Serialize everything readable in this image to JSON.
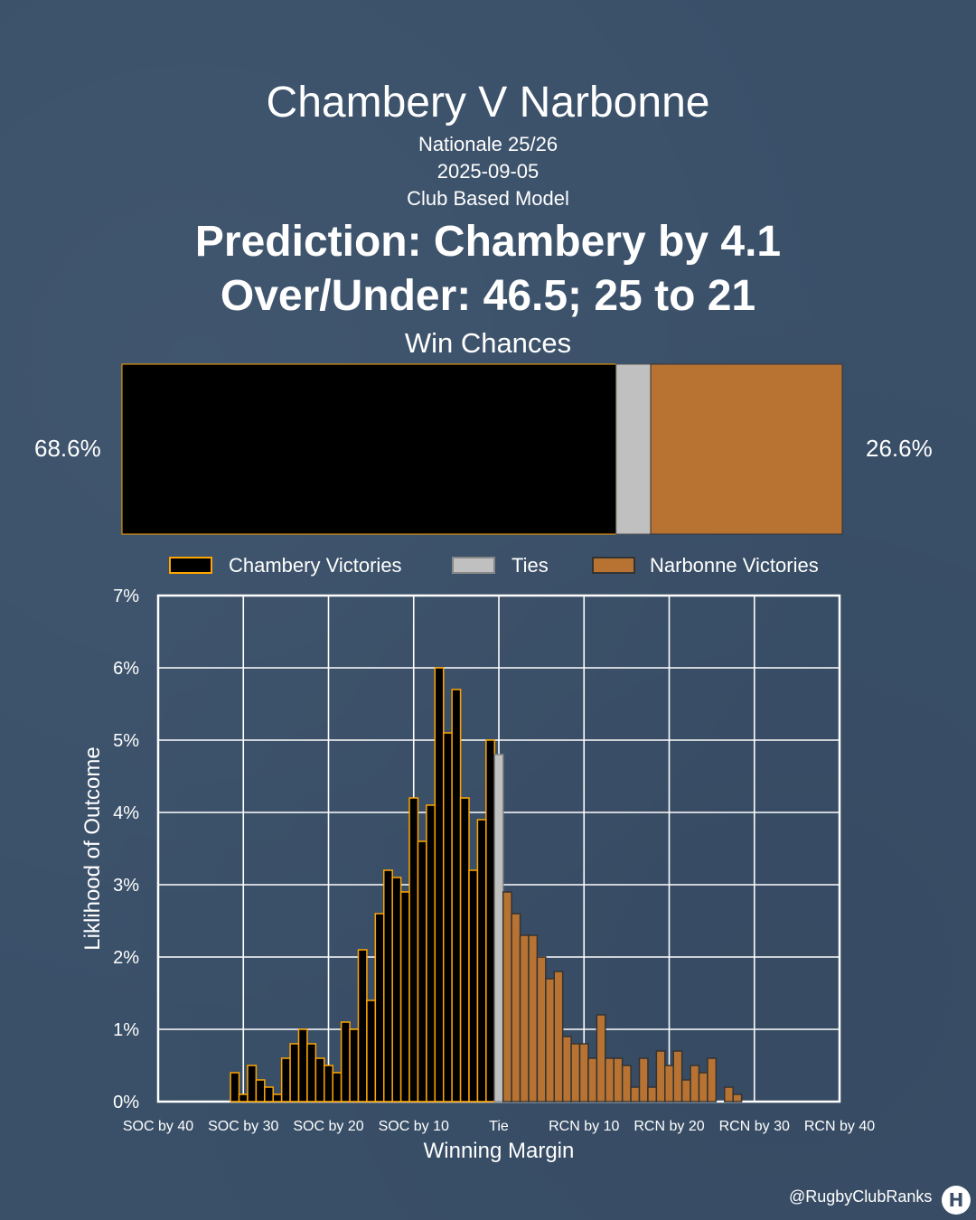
{
  "header": {
    "title": "Chambery V Narbonne",
    "competition": "Nationale 25/26",
    "date": "2025-09-05",
    "model": "Club Based Model",
    "prediction": "Prediction: Chambery by 4.1",
    "over_under": "Over/Under: 46.5; 25 to 21"
  },
  "win_chances": {
    "title": "Win Chances",
    "home_label": "68.6%",
    "away_label": "26.6%",
    "home_pct": 68.6,
    "tie_pct": 4.8,
    "away_pct": 26.6
  },
  "legend": [
    {
      "label": "Chambery Victories",
      "color": "#000000"
    },
    {
      "label": "Ties",
      "color": "#c0c0c0"
    },
    {
      "label": "Narbonne Victories",
      "color": "#b87333"
    }
  ],
  "colors": {
    "background": "#3a5069",
    "home": "#000000",
    "home_edge": "#ffa500",
    "tie": "#c0c0c0",
    "away": "#b87333",
    "grid": "#ffffff"
  },
  "chart_data": {
    "type": "bar",
    "xlabel": "Winning Margin",
    "ylabel": "Liklihood of Outcome",
    "xlim": [
      -40,
      40
    ],
    "ylim": [
      0,
      7
    ],
    "x_ticks": [
      -40,
      -30,
      -20,
      -10,
      0,
      10,
      20,
      30,
      40
    ],
    "x_tick_labels": [
      "SOC by 40",
      "SOC by 30",
      "SOC by 20",
      "SOC by 10",
      "Tie",
      "RCN by 10",
      "RCN by 20",
      "RCN by 30",
      "RCN by 40"
    ],
    "y_ticks": [
      0,
      1,
      2,
      3,
      4,
      5,
      6,
      7
    ],
    "y_tick_labels": [
      "0%",
      "1%",
      "2%",
      "3%",
      "4%",
      "5%",
      "6%",
      "7%"
    ],
    "grid": true,
    "series": [
      {
        "name": "Chambery Victories",
        "x": [
          -31,
          -30,
          -29,
          -28,
          -27,
          -26,
          -25,
          -24,
          -23,
          -22,
          -21,
          -20,
          -19,
          -18,
          -17,
          -16,
          -15,
          -14,
          -13,
          -12,
          -11,
          -10,
          -9,
          -8,
          -7,
          -6,
          -5,
          -4,
          -3,
          -2,
          -1
        ],
        "values": [
          0.4,
          0.1,
          0.5,
          0.3,
          0.2,
          0.1,
          0.6,
          0.8,
          1.0,
          0.8,
          0.6,
          0.5,
          0.4,
          1.1,
          1.0,
          2.1,
          1.4,
          2.6,
          3.2,
          3.1,
          2.9,
          4.2,
          3.6,
          4.1,
          6.0,
          5.1,
          5.7,
          4.2,
          3.2,
          3.9,
          5.0
        ]
      },
      {
        "name": "Ties",
        "x": [
          0
        ],
        "values": [
          4.8
        ]
      },
      {
        "name": "Narbonne Victories",
        "x": [
          1,
          2,
          3,
          4,
          5,
          6,
          7,
          8,
          9,
          10,
          11,
          12,
          13,
          14,
          15,
          16,
          17,
          18,
          19,
          20,
          21,
          22,
          23,
          24,
          25,
          26,
          27,
          28
        ],
        "values": [
          2.9,
          2.6,
          2.3,
          2.3,
          2.0,
          1.7,
          1.8,
          0.9,
          0.8,
          0.8,
          0.6,
          1.2,
          0.6,
          0.6,
          0.5,
          0.2,
          0.6,
          0.2,
          0.7,
          0.5,
          0.7,
          0.3,
          0.5,
          0.4,
          0.6,
          0.0,
          0.2,
          0.1
        ]
      }
    ]
  },
  "footer": {
    "handle": "@RugbyClubRanks",
    "logo": "rugby-posts-logo"
  }
}
